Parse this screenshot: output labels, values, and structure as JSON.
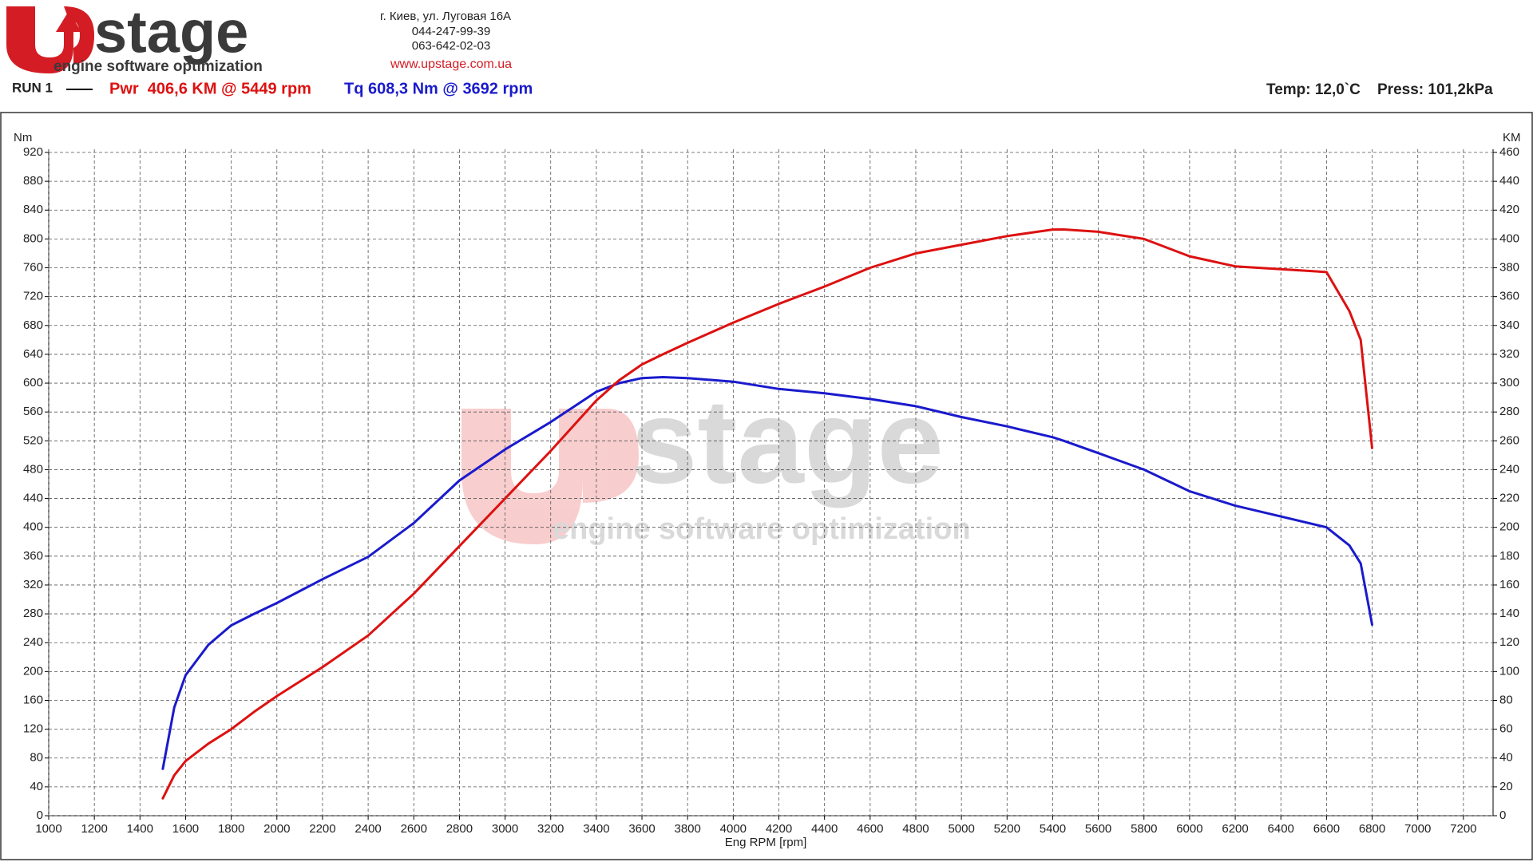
{
  "header": {
    "brand": "stage",
    "tagline": "engine software optimization",
    "address": [
      "г. Киев, ул. Луговая 16А",
      "044-247-99-39",
      "063-642-02-03"
    ],
    "url": "www.upstage.com.ua",
    "run": "RUN 1",
    "power_summary": "Pwr  406,6 KM @ 5449 rpm",
    "torque_summary": "Tq 608,3 Nm @ 3692 rpm",
    "temp": "Temp: 12,0`C",
    "press": "Press: 101,2kPa"
  },
  "chart_data": {
    "type": "line",
    "xlabel": "Eng RPM [rpm]",
    "ylabel": "Nm",
    "y2label": "KM",
    "x": [
      1500,
      1550,
      1600,
      1700,
      1800,
      1900,
      2000,
      2200,
      2400,
      2600,
      2800,
      3000,
      3200,
      3400,
      3500,
      3600,
      3692,
      3800,
      4000,
      4200,
      4400,
      4600,
      4800,
      5000,
      5200,
      5400,
      5449,
      5600,
      5800,
      6000,
      6200,
      6400,
      6600,
      6700,
      6750,
      6800
    ],
    "series": [
      {
        "name": "Tq",
        "color": "#1a1acc",
        "axis": "y",
        "values": [
          65,
          150,
          195,
          237,
          264,
          280,
          295,
          328,
          359,
          406,
          465,
          508,
          546,
          588,
          600,
          607,
          608.3,
          607,
          602,
          592,
          586,
          578,
          568,
          553,
          540,
          525,
          520,
          503,
          480,
          450,
          430,
          415,
          400,
          375,
          350,
          265
        ]
      },
      {
        "name": "Pwr",
        "color": "#dd1111",
        "axis": "y2",
        "values": [
          12,
          28,
          38,
          50,
          60,
          72,
          83,
          103,
          125,
          154,
          187,
          220,
          253,
          288,
          302,
          313,
          320,
          328,
          342,
          355,
          367,
          380,
          390,
          396,
          402,
          406.5,
          406.6,
          405,
          400,
          388,
          381,
          379,
          377,
          350,
          330,
          255
        ]
      }
    ],
    "xlim": [
      1000,
      7330
    ],
    "xticks": [
      1000,
      1200,
      1400,
      1600,
      1800,
      2000,
      2200,
      2400,
      2600,
      2800,
      3000,
      3200,
      3400,
      3600,
      3800,
      4000,
      4200,
      4400,
      4600,
      4800,
      5000,
      5200,
      5400,
      5600,
      5800,
      6000,
      6200,
      6400,
      6600,
      6800,
      7000,
      7200
    ],
    "ylim": [
      0,
      920
    ],
    "yticks": [
      0,
      40,
      80,
      120,
      160,
      200,
      240,
      280,
      320,
      360,
      400,
      440,
      480,
      520,
      560,
      600,
      640,
      680,
      720,
      760,
      800,
      840,
      880,
      920
    ],
    "y2lim": [
      0,
      460
    ],
    "y2ticks": [
      0,
      20,
      40,
      60,
      80,
      100,
      120,
      140,
      160,
      180,
      200,
      220,
      240,
      260,
      280,
      300,
      320,
      340,
      360,
      380,
      400,
      420,
      440,
      460
    ],
    "grid": true
  }
}
